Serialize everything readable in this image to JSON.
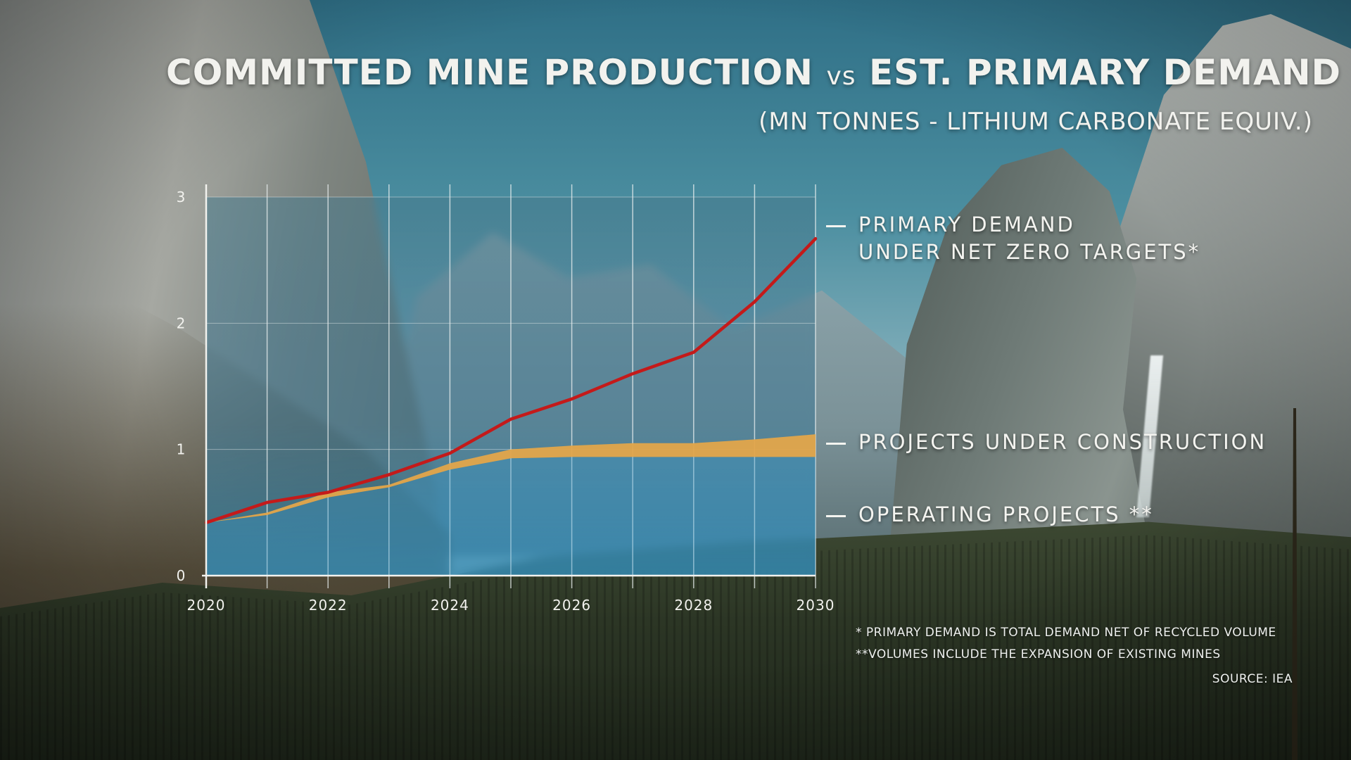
{
  "title_main": "COMMITTED MINE PRODUCTION",
  "title_vs": "vs",
  "title_end": "EST. PRIMARY DEMAND",
  "subtitle": "(MN TONNES - LITHIUM CARBONATE EQUIV.)",
  "legend": {
    "primary_demand_line1": "PRIMARY DEMAND",
    "primary_demand_line2": "UNDER NET ZERO TARGETS*",
    "under_construction": "PROJECTS UNDER CONSTRUCTION",
    "operating": "OPERATING PROJECTS **"
  },
  "footnotes": {
    "note1": "* PRIMARY DEMAND IS TOTAL DEMAND NET OF RECYCLED VOLUME",
    "note2": "**VOLUMES INCLUDE THE EXPANSION OF EXISTING MINES",
    "source": "SOURCE: IEA"
  },
  "colors": {
    "demand_line": "#c41a1a",
    "construction_band": "#e3a54a",
    "operating_area": "#3a98c8"
  },
  "chart_data": {
    "type": "area",
    "title": "COMMITTED MINE PRODUCTION vs EST. PRIMARY DEMAND",
    "subtitle": "(MN TONNES - LITHIUM CARBONATE EQUIV.)",
    "xlabel": "",
    "ylabel": "",
    "xlim": [
      2020,
      2030
    ],
    "ylim": [
      0,
      3
    ],
    "x_ticks": [
      "2020",
      "2022",
      "2024",
      "2026",
      "2028",
      "2030"
    ],
    "y_ticks": [
      "0",
      "1",
      "2",
      "3"
    ],
    "grid": true,
    "legend_position": "right",
    "x": [
      2020,
      2021,
      2022,
      2023,
      2024,
      2025,
      2026,
      2027,
      2028,
      2029,
      2030
    ],
    "series": [
      {
        "name": "OPERATING PROJECTS **",
        "type": "area",
        "values": [
          0.42,
          0.48,
          0.62,
          0.7,
          0.84,
          0.93,
          0.94,
          0.94,
          0.94,
          0.94,
          0.94
        ]
      },
      {
        "name": "PROJECTS UNDER CONSTRUCTION",
        "type": "stacked-area-top",
        "values": [
          0.42,
          0.5,
          0.66,
          0.72,
          0.89,
          1.0,
          1.03,
          1.05,
          1.05,
          1.08,
          1.12
        ]
      },
      {
        "name": "PRIMARY DEMAND UNDER NET ZERO TARGETS*",
        "type": "line",
        "values": [
          0.42,
          0.58,
          0.66,
          0.8,
          0.97,
          1.24,
          1.4,
          1.6,
          1.77,
          2.17,
          2.67
        ]
      }
    ]
  }
}
